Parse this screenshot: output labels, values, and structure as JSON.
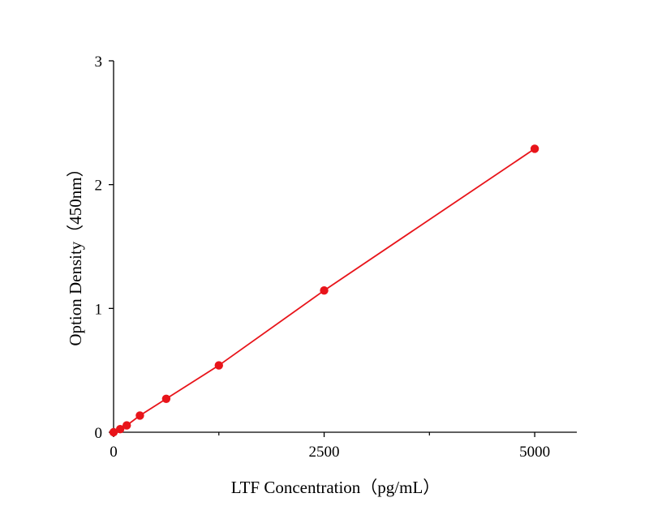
{
  "chart_data": {
    "type": "scatter",
    "title": "",
    "xlabel": "LTF  Concentration（pg/mL）",
    "ylabel": "Option Density（450nm）",
    "xlim": [
      0,
      5500
    ],
    "ylim": [
      0,
      3
    ],
    "x_ticks": [
      0,
      2500,
      5000
    ],
    "x_minor_ticks": [
      1250,
      3750
    ],
    "y_ticks": [
      0,
      1,
      2,
      3
    ],
    "grid": false,
    "legend": "none",
    "series": [
      {
        "color": "#e8141a",
        "marker": "circle",
        "fit_line": true,
        "points": [
          {
            "x": 0,
            "y": 0.0
          },
          {
            "x": 78.125,
            "y": 0.025
          },
          {
            "x": 156.25,
            "y": 0.055
          },
          {
            "x": 312.5,
            "y": 0.135
          },
          {
            "x": 625,
            "y": 0.27
          },
          {
            "x": 1250,
            "y": 0.54
          },
          {
            "x": 2500,
            "y": 1.145
          },
          {
            "x": 5000,
            "y": 2.29
          }
        ]
      }
    ]
  }
}
